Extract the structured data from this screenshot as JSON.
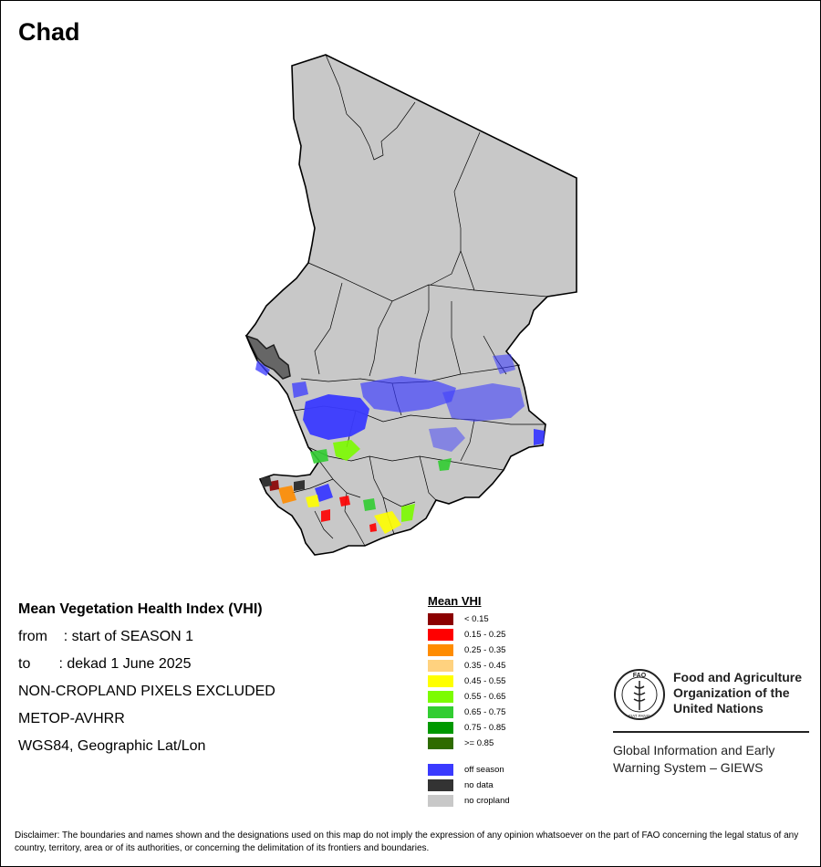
{
  "title": "Chad",
  "info": {
    "heading": "Mean Vegetation Health Index (VHI)",
    "from_line": "from    : start of SEASON 1",
    "to_line": "to       : dekad 1 June 2025",
    "exclusion": "NON-CROPLAND PIXELS EXCLUDED",
    "sensor": "METOP-AVHRR",
    "projection": "WGS84, Geographic Lat/Lon"
  },
  "legend": {
    "title": "Mean VHI",
    "classes": [
      {
        "label": "< 0.15",
        "color": "#8b0000"
      },
      {
        "label": "0.15 - 0.25",
        "color": "#ff0000"
      },
      {
        "label": "0.25 - 0.35",
        "color": "#ff8c00"
      },
      {
        "label": "0.35 - 0.45",
        "color": "#ffd27f"
      },
      {
        "label": "0.45 - 0.55",
        "color": "#ffff00"
      },
      {
        "label": "0.55 - 0.65",
        "color": "#7cfc00"
      },
      {
        "label": "0.65 - 0.75",
        "color": "#32cd32"
      },
      {
        "label": "0.75 - 0.85",
        "color": "#009900"
      },
      {
        "label": ">= 0.85",
        "color": "#2e6b00"
      }
    ],
    "special": [
      {
        "label": "off season",
        "color": "#3a3aff"
      },
      {
        "label": "no data",
        "color": "#333333"
      },
      {
        "label": "no cropland",
        "color": "#c8c8c8"
      }
    ]
  },
  "logo": {
    "org_line1": "Food and Agriculture",
    "org_line2": "Organization of the",
    "org_line3": "United Nations",
    "emblem_letters": "FAO",
    "emblem_motto": "FIAT PANIS",
    "system_line1": "Global Information and Early",
    "system_line2": "Warning System – GIEWS"
  },
  "disclaimer": "Disclaimer: The boundaries and names shown and the designations used on this map do not imply the expression of any opinion whatsoever on the part of FAO concerning the legal status of any country, territory, area or of its authorities, or concerning the delimitation of its frontiers and boundaries.",
  "colors": {
    "land": "#c8c8c8",
    "border": "#000000",
    "off_season": "#3a3aff"
  }
}
